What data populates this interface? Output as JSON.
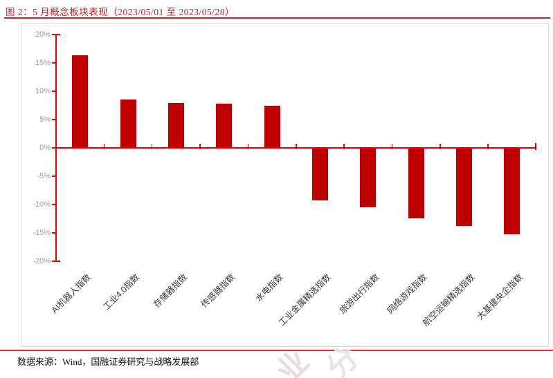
{
  "figure": {
    "title": "图 2：5 月概念板块表现（2023/05/01 至 2023/05/28）",
    "source": "数据来源：Wind，国融证券研究与战略发展部",
    "watermark_chars": {
      "first": "业",
      "second": "分"
    }
  },
  "colors": {
    "bar": "#C00000",
    "axis": "#EE0000",
    "title_red": "#C02323",
    "divider_red": "#B52A2A",
    "tick_label": "#9A9A9A",
    "category_label": "#3A3A3A",
    "frame_border": "#D9D9D9"
  },
  "chart_data": {
    "type": "bar",
    "title": "5月概念板块表现（2023/05/01 至 2023/05/28）",
    "categories": [
      "AI机器人指数",
      "工业4.0指数",
      "存储器指数",
      "传感器指数",
      "水电指数",
      "工业金属精选指数",
      "旅游出行指数",
      "网络游戏指数",
      "航空运输精选指数",
      "大基建央企指数"
    ],
    "values": [
      16.3,
      8.5,
      7.9,
      7.7,
      7.3,
      -9.2,
      -10.4,
      -12.4,
      -13.7,
      -15.2
    ],
    "xlabel": "",
    "ylabel": "",
    "ylim": [
      -20,
      20
    ],
    "y_tick_labels": [
      "20%",
      "15%",
      "10%",
      "5%",
      "0%",
      "-5%",
      "-10%",
      "-15%",
      "-20%"
    ],
    "grid": false,
    "legend": false,
    "bar_color": "#C00000",
    "axis_color": "#EE0000",
    "category_label_rotation_deg": -45
  }
}
